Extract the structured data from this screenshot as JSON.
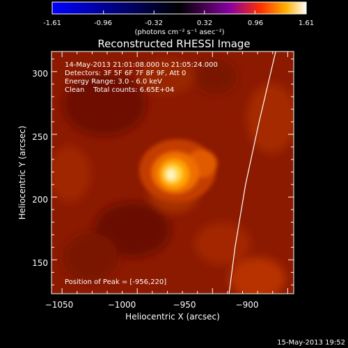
{
  "colorbar": {
    "ticks": [
      "-1.61",
      "-0.96",
      "-0.32",
      "0.32",
      "0.96",
      "1.61"
    ],
    "unit_label": "(photons cm⁻² s⁻¹ asec⁻²)",
    "min": -1.61,
    "max": 1.61,
    "colors": [
      "#0000ff",
      "#000000",
      "#8a00a0",
      "#ff3000",
      "#ffb000",
      "#ffffff"
    ]
  },
  "title": "Reconstructed RHESSI Image",
  "info": [
    "14-May-2013 21:01:08.000 to 21:05:24.000",
    "Detectors: 3F 5F 6F 7F 8F 9F, Att 0",
    "Energy Range: 3.0 - 6.0 keV",
    "Clean    Total counts: 6.65E+04"
  ],
  "peak_label": "Position of Peak = [-956,220]",
  "timestamp": "15-May-2013 19:52",
  "chart_data": {
    "type": "heatmap",
    "title": "Reconstructed RHESSI Image",
    "xlabel": "Heliocentric X (arcsec)",
    "ylabel": "Heliocentric Y (arcsec)",
    "xlim": [
      -1057,
      -896
    ],
    "ylim": [
      123,
      316
    ],
    "xticks": [
      -1050,
      -1000,
      -950,
      -900
    ],
    "xtick_labels": [
      "−1050",
      "−1000",
      "−950",
      "−900"
    ],
    "yticks": [
      150,
      200,
      250,
      300
    ],
    "ytick_labels": [
      "150",
      "200",
      "250",
      "300"
    ],
    "peak": [
      -956,
      220
    ],
    "sources": [
      {
        "x": -956,
        "y": 220,
        "intensity": 1.61
      },
      {
        "x": -937,
        "y": 226,
        "intensity": 0.9
      }
    ],
    "limb": [
      [
        -939,
        123
      ],
      [
        -935,
        160
      ],
      [
        -928,
        210
      ],
      [
        -919,
        260
      ],
      [
        -908,
        316
      ]
    ]
  }
}
